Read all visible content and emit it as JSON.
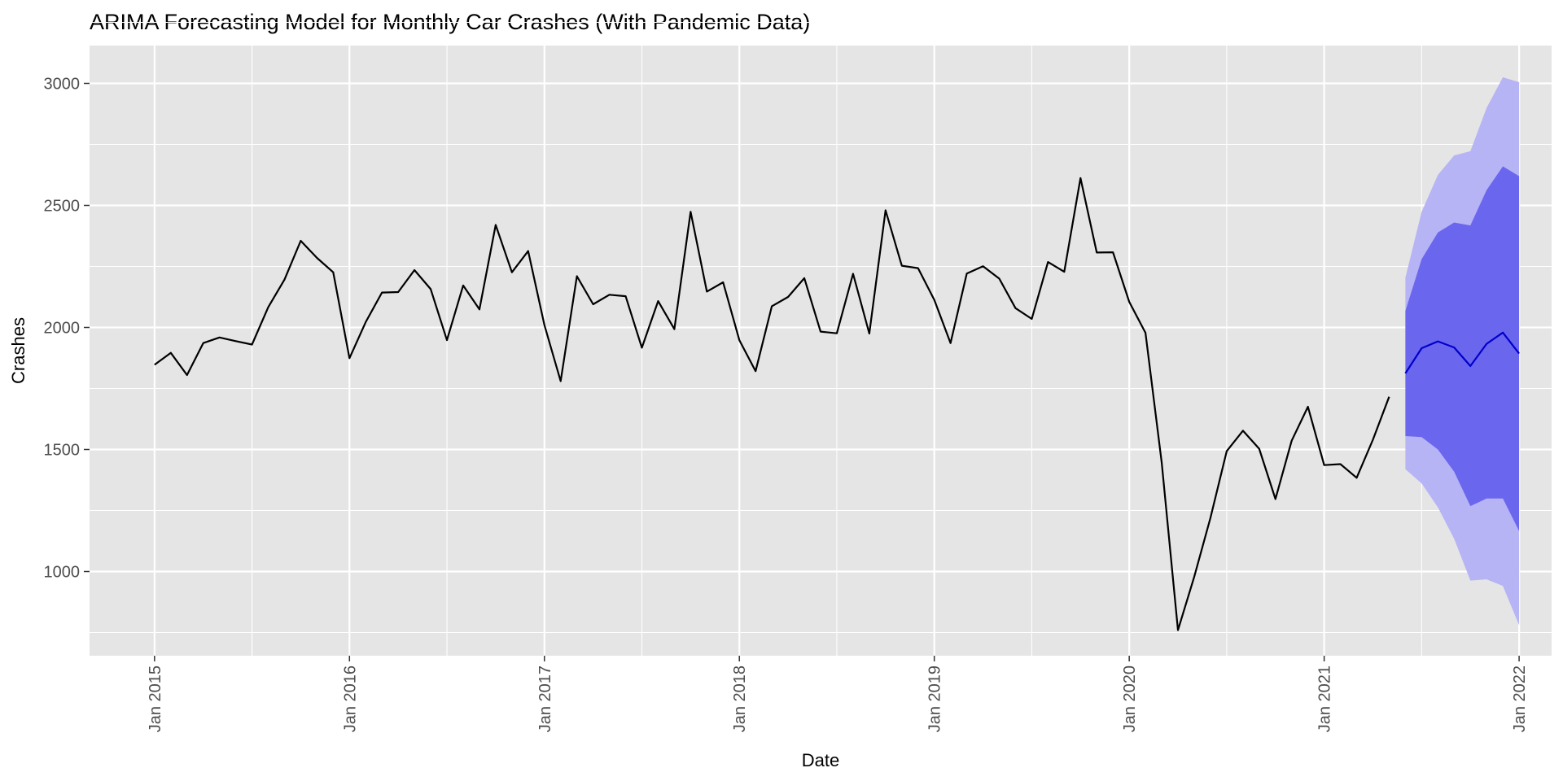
{
  "chart_data": {
    "type": "line",
    "title": "ARIMA Forecasting Model for Monthly Car Crashes (With Pandemic Data)",
    "xlabel": "Date",
    "ylabel": "Crashes",
    "x_unit": "month",
    "xlim": [
      "2014-09",
      "2022-03"
    ],
    "ylim": [
      655,
      3155
    ],
    "grid": true,
    "legend": "none",
    "y_ticks": [
      1000,
      1500,
      2000,
      2500,
      3000
    ],
    "x_ticks": [
      {
        "date": "2015-01",
        "label": "Jan 2015"
      },
      {
        "date": "2016-01",
        "label": "Jan 2016"
      },
      {
        "date": "2017-01",
        "label": "Jan 2017"
      },
      {
        "date": "2018-01",
        "label": "Jan 2018"
      },
      {
        "date": "2019-01",
        "label": "Jan 2019"
      },
      {
        "date": "2020-01",
        "label": "Jan 2020"
      },
      {
        "date": "2021-01",
        "label": "Jan 2021"
      },
      {
        "date": "2022-01",
        "label": "Jan 2022"
      }
    ],
    "colors": {
      "panel": "#E5E5E5",
      "grid": "#FFFFFF",
      "observed": "#000000",
      "forecast": "#0000CC",
      "band80": "#6B66EE",
      "band95": "#B6B4F5"
    },
    "series": [
      {
        "role": "observed",
        "x": [
          "2015-01",
          "2015-02",
          "2015-03",
          "2015-04",
          "2015-05",
          "2015-06",
          "2015-07",
          "2015-08",
          "2015-09",
          "2015-10",
          "2015-11",
          "2015-12",
          "2016-01",
          "2016-02",
          "2016-03",
          "2016-04",
          "2016-05",
          "2016-06",
          "2016-07",
          "2016-08",
          "2016-09",
          "2016-10",
          "2016-11",
          "2016-12",
          "2017-01",
          "2017-02",
          "2017-03",
          "2017-04",
          "2017-05",
          "2017-06",
          "2017-07",
          "2017-08",
          "2017-09",
          "2017-10",
          "2017-11",
          "2017-12",
          "2018-01",
          "2018-02",
          "2018-03",
          "2018-04",
          "2018-05",
          "2018-06",
          "2018-07",
          "2018-08",
          "2018-09",
          "2018-10",
          "2018-11",
          "2018-12",
          "2019-01",
          "2019-02",
          "2019-03",
          "2019-04",
          "2019-05",
          "2019-06",
          "2019-07",
          "2019-08",
          "2019-09",
          "2019-10",
          "2019-11",
          "2019-12",
          "2020-01",
          "2020-02",
          "2020-03",
          "2020-04",
          "2020-05",
          "2020-06",
          "2020-07",
          "2020-08",
          "2020-09",
          "2020-10",
          "2020-11",
          "2020-12",
          "2021-01",
          "2021-02",
          "2021-03",
          "2021-04",
          "2021-05"
        ],
        "y": [
          1847,
          1896,
          1805,
          1936,
          1959,
          1944,
          1930,
          2083,
          2196,
          2355,
          2285,
          2226,
          1874,
          2022,
          2143,
          2145,
          2235,
          2157,
          1948,
          2172,
          2074,
          2420,
          2226,
          2313,
          2010,
          1780,
          2210,
          2095,
          2134,
          2128,
          1917,
          2108,
          1993,
          2474,
          2147,
          2185,
          1948,
          1821,
          2087,
          2125,
          2202,
          1983,
          1976,
          2220,
          1975,
          2480,
          2253,
          2243,
          2113,
          1936,
          2221,
          2251,
          2200,
          2079,
          2035,
          2268,
          2228,
          2612,
          2307,
          2308,
          2105,
          1978,
          1446,
          760,
          978,
          1220,
          1493,
          1577,
          1503,
          1297,
          1536,
          1675,
          1436,
          1440,
          1384,
          1540,
          1716
        ]
      },
      {
        "role": "forecast",
        "x": [
          "2021-06",
          "2021-07",
          "2021-08",
          "2021-09",
          "2021-10",
          "2021-11",
          "2021-12",
          "2022-01"
        ],
        "y": [
          1812,
          1915,
          1943,
          1918,
          1842,
          1933,
          1979,
          1893
        ],
        "lo80": [
          1555,
          1551,
          1500,
          1409,
          1268,
          1299,
          1299,
          1166
        ],
        "hi80": [
          2068,
          2280,
          2389,
          2430,
          2418,
          2563,
          2660,
          2620
        ],
        "lo95": [
          1419,
          1361,
          1263,
          1134,
          963,
          968,
          941,
          780
        ],
        "hi95": [
          2204,
          2474,
          2625,
          2705,
          2722,
          2900,
          3025,
          3005
        ]
      }
    ]
  }
}
